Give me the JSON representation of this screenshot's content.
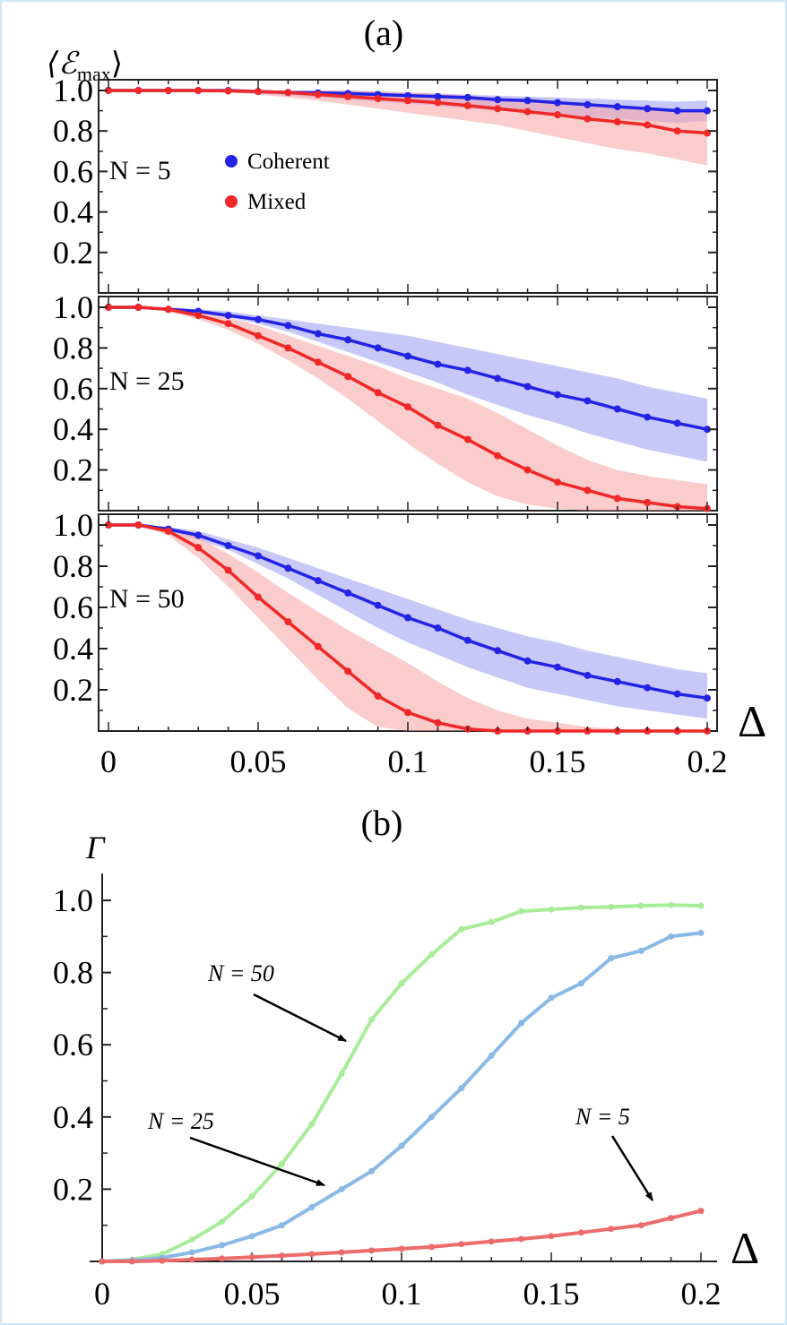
{
  "chart_data": [
    {
      "panel_label": "(a)",
      "type": "line",
      "ylabel_main": "⟨ℰ",
      "ylabel_sub": "max",
      "ylabel_close": "⟩",
      "xlabel": "Δ",
      "xlim": [
        0,
        0.2
      ],
      "x_ticks": [
        "0",
        "0.05",
        "0.1",
        "0.15",
        "0.2"
      ],
      "legend": [
        {
          "name": "Coherent",
          "color": "#2323e6"
        },
        {
          "name": "Mixed",
          "color": "#f02828"
        }
      ],
      "x": [
        0,
        0.01,
        0.02,
        0.03,
        0.04,
        0.05,
        0.06,
        0.07,
        0.08,
        0.09,
        0.1,
        0.11,
        0.12,
        0.13,
        0.14,
        0.15,
        0.16,
        0.17,
        0.18,
        0.19,
        0.2
      ],
      "subplots": [
        {
          "label": "N = 5",
          "ylim": [
            0,
            1.06
          ],
          "y_ticks": [
            "0.2",
            "0.4",
            "0.6",
            "0.8",
            "1.0"
          ],
          "series": [
            {
              "name": "Coherent",
              "color": "#2323e6",
              "band_color": "#9b9bf2",
              "values": [
                1.0,
                1.0,
                1.0,
                1.0,
                1.0,
                0.995,
                0.99,
                0.988,
                0.985,
                0.98,
                0.975,
                0.97,
                0.965,
                0.955,
                0.95,
                0.94,
                0.93,
                0.92,
                0.91,
                0.9,
                0.9
              ],
              "lower": [
                1.0,
                1.0,
                1.0,
                0.995,
                0.99,
                0.985,
                0.975,
                0.965,
                0.955,
                0.945,
                0.935,
                0.925,
                0.91,
                0.9,
                0.89,
                0.88,
                0.87,
                0.86,
                0.85,
                0.84,
                0.85
              ],
              "upper": [
                1.0,
                1.0,
                1.0,
                1.0,
                1.0,
                1.0,
                1.0,
                1.0,
                1.0,
                0.995,
                0.99,
                0.985,
                0.98,
                0.975,
                0.97,
                0.965,
                0.96,
                0.955,
                0.95,
                0.945,
                0.95
              ]
            },
            {
              "name": "Mixed",
              "color": "#f02828",
              "band_color": "#f7a3a3",
              "values": [
                1.0,
                1.0,
                1.0,
                1.0,
                0.998,
                0.995,
                0.99,
                0.98,
                0.97,
                0.96,
                0.95,
                0.94,
                0.925,
                0.91,
                0.895,
                0.88,
                0.86,
                0.845,
                0.83,
                0.8,
                0.79
              ],
              "lower": [
                1.0,
                1.0,
                1.0,
                0.995,
                0.99,
                0.98,
                0.965,
                0.95,
                0.93,
                0.91,
                0.89,
                0.87,
                0.85,
                0.83,
                0.8,
                0.77,
                0.74,
                0.71,
                0.69,
                0.66,
                0.63
              ],
              "upper": [
                1.0,
                1.0,
                1.0,
                1.0,
                1.0,
                1.0,
                1.0,
                1.0,
                1.0,
                0.995,
                0.99,
                0.985,
                0.975,
                0.965,
                0.955,
                0.945,
                0.935,
                0.925,
                0.915,
                0.905,
                0.895
              ]
            }
          ]
        },
        {
          "label": "N = 25",
          "ylim": [
            0,
            1.06
          ],
          "y_ticks": [
            "0.2",
            "0.4",
            "0.6",
            "0.8",
            "1.0"
          ],
          "series": [
            {
              "name": "Coherent",
              "color": "#2323e6",
              "band_color": "#9b9bf2",
              "values": [
                1.0,
                1.0,
                0.99,
                0.98,
                0.96,
                0.94,
                0.91,
                0.87,
                0.84,
                0.8,
                0.76,
                0.72,
                0.69,
                0.65,
                0.61,
                0.57,
                0.54,
                0.5,
                0.46,
                0.43,
                0.4
              ],
              "lower": [
                1.0,
                1.0,
                0.99,
                0.97,
                0.95,
                0.92,
                0.88,
                0.83,
                0.78,
                0.73,
                0.68,
                0.63,
                0.57,
                0.52,
                0.47,
                0.43,
                0.38,
                0.34,
                0.3,
                0.27,
                0.24
              ],
              "upper": [
                1.0,
                1.0,
                1.0,
                0.99,
                0.98,
                0.96,
                0.94,
                0.92,
                0.9,
                0.88,
                0.86,
                0.83,
                0.8,
                0.77,
                0.74,
                0.71,
                0.68,
                0.65,
                0.61,
                0.58,
                0.55
              ]
            },
            {
              "name": "Mixed",
              "color": "#f02828",
              "band_color": "#f7a3a3",
              "values": [
                1.0,
                1.0,
                0.99,
                0.96,
                0.92,
                0.86,
                0.8,
                0.73,
                0.66,
                0.58,
                0.51,
                0.42,
                0.35,
                0.27,
                0.2,
                0.14,
                0.1,
                0.06,
                0.04,
                0.02,
                0.01
              ],
              "lower": [
                1.0,
                1.0,
                0.98,
                0.94,
                0.89,
                0.82,
                0.74,
                0.65,
                0.55,
                0.44,
                0.33,
                0.23,
                0.14,
                0.07,
                0.03,
                0.01,
                0.0,
                0.0,
                0.0,
                0.0,
                0.0
              ],
              "upper": [
                1.0,
                1.0,
                1.0,
                0.98,
                0.95,
                0.91,
                0.86,
                0.81,
                0.76,
                0.71,
                0.65,
                0.6,
                0.55,
                0.48,
                0.4,
                0.32,
                0.25,
                0.2,
                0.17,
                0.15,
                0.13
              ]
            }
          ]
        },
        {
          "label": "N = 50",
          "ylim": [
            0,
            1.06
          ],
          "y_ticks": [
            "0.2",
            "0.4",
            "0.6",
            "0.8",
            "1.0"
          ],
          "series": [
            {
              "name": "Coherent",
              "color": "#2323e6",
              "band_color": "#9b9bf2",
              "values": [
                1.0,
                1.0,
                0.98,
                0.95,
                0.9,
                0.85,
                0.79,
                0.73,
                0.67,
                0.61,
                0.55,
                0.5,
                0.44,
                0.39,
                0.34,
                0.31,
                0.27,
                0.24,
                0.21,
                0.18,
                0.16
              ],
              "lower": [
                1.0,
                1.0,
                0.97,
                0.93,
                0.88,
                0.81,
                0.74,
                0.66,
                0.58,
                0.5,
                0.43,
                0.37,
                0.31,
                0.26,
                0.21,
                0.18,
                0.15,
                0.12,
                0.1,
                0.08,
                0.06
              ],
              "upper": [
                1.0,
                1.0,
                0.99,
                0.97,
                0.93,
                0.89,
                0.84,
                0.79,
                0.74,
                0.69,
                0.64,
                0.59,
                0.54,
                0.5,
                0.46,
                0.43,
                0.39,
                0.36,
                0.33,
                0.3,
                0.28
              ]
            },
            {
              "name": "Mixed",
              "color": "#f02828",
              "band_color": "#f7a3a3",
              "values": [
                1.0,
                1.0,
                0.97,
                0.89,
                0.78,
                0.65,
                0.53,
                0.41,
                0.29,
                0.17,
                0.09,
                0.04,
                0.01,
                0.0,
                0.0,
                0.0,
                0.0,
                0.0,
                0.0,
                0.0,
                0.0
              ],
              "lower": [
                1.0,
                1.0,
                0.95,
                0.84,
                0.7,
                0.55,
                0.4,
                0.25,
                0.11,
                0.02,
                0.0,
                0.0,
                0.0,
                0.0,
                0.0,
                0.0,
                0.0,
                0.0,
                0.0,
                0.0,
                0.0
              ],
              "upper": [
                1.0,
                1.0,
                0.99,
                0.94,
                0.86,
                0.77,
                0.67,
                0.58,
                0.49,
                0.41,
                0.33,
                0.24,
                0.16,
                0.1,
                0.06,
                0.04,
                0.02,
                0.01,
                0.0,
                0.0,
                0.0
              ]
            }
          ]
        }
      ]
    },
    {
      "panel_label": "(b)",
      "type": "line",
      "ylabel": "Γ",
      "xlabel": "Δ",
      "xlim": [
        0,
        0.2
      ],
      "ylim": [
        0,
        1.06
      ],
      "x_ticks": [
        "0",
        "0.05",
        "0.1",
        "0.15",
        "0.2"
      ],
      "y_ticks": [
        "0.2",
        "0.4",
        "0.6",
        "0.8",
        "1.0"
      ],
      "x": [
        0,
        0.01,
        0.02,
        0.03,
        0.04,
        0.05,
        0.06,
        0.07,
        0.08,
        0.09,
        0.1,
        0.11,
        0.12,
        0.13,
        0.14,
        0.15,
        0.16,
        0.17,
        0.18,
        0.19,
        0.2
      ],
      "series": [
        {
          "name": "N = 50",
          "color": "#a8ec9a",
          "values": [
            0.0,
            0.005,
            0.02,
            0.06,
            0.11,
            0.18,
            0.27,
            0.38,
            0.52,
            0.67,
            0.77,
            0.85,
            0.92,
            0.94,
            0.97,
            0.975,
            0.98,
            0.982,
            0.985,
            0.987,
            0.985
          ]
        },
        {
          "name": "N = 25",
          "color": "#8ab9e6",
          "values": [
            0.0,
            0.003,
            0.01,
            0.025,
            0.045,
            0.07,
            0.1,
            0.15,
            0.2,
            0.25,
            0.32,
            0.4,
            0.48,
            0.57,
            0.66,
            0.73,
            0.77,
            0.84,
            0.86,
            0.9,
            0.91
          ]
        },
        {
          "name": "N = 5",
          "color": "#ec6b6b",
          "values": [
            0.0,
            0.0,
            0.002,
            0.005,
            0.008,
            0.012,
            0.016,
            0.02,
            0.025,
            0.03,
            0.035,
            0.04,
            0.048,
            0.055,
            0.062,
            0.07,
            0.08,
            0.09,
            0.1,
            0.12,
            0.14
          ]
        }
      ],
      "annotations": [
        "N = 50",
        "N = 25",
        "N = 5"
      ]
    }
  ]
}
